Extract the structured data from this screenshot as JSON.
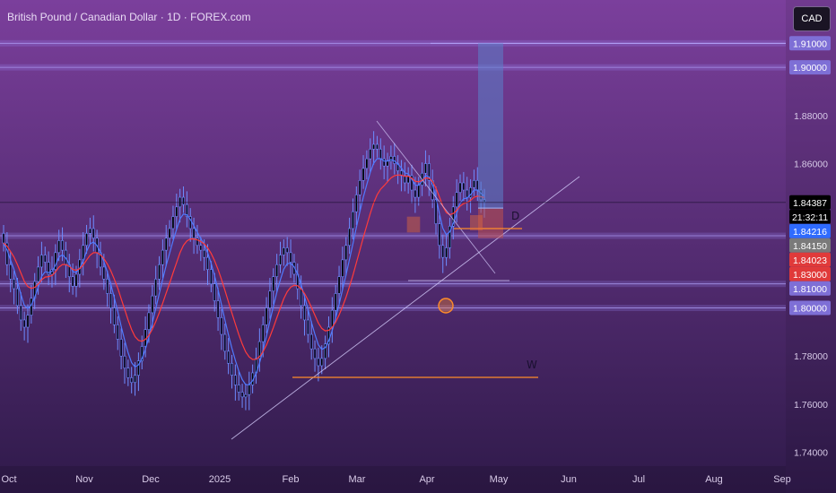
{
  "header": {
    "title": "British Pound / Canadian Dollar · 1D · FOREX.com",
    "currency_button": "CAD"
  },
  "colors": {
    "background_top": "#7b3f9c",
    "background_bottom": "#2f1a4a",
    "candle_body": "#000000",
    "candle_border": "#6d8cff",
    "ema_fast": "#4f7bff",
    "ema_slow": "#ff3b3b",
    "projection_box": "#5b7fc8",
    "stop_box": "#c0504d",
    "annotation_orange": "#ff8c2a"
  },
  "chart_data": {
    "type": "candlestick",
    "symbol": "GBPCAD",
    "timeframe": "1D",
    "ylim": [
      1.735,
      1.928
    ],
    "y_ticks": [
      "1.74000",
      "1.76000",
      "1.78000",
      "1.86000",
      "1.88000"
    ],
    "x_ticks": [
      "Oct",
      "Nov",
      "Dec",
      "2025",
      "Feb",
      "Mar",
      "Apr",
      "May",
      "Jun",
      "Jul",
      "Aug",
      "Sep"
    ],
    "candles_close_estimate": [
      1.827,
      1.818,
      1.812,
      1.808,
      1.801,
      1.795,
      1.792,
      1.797,
      1.804,
      1.811,
      1.817,
      1.822,
      1.819,
      1.814,
      1.816,
      1.823,
      1.828,
      1.824,
      1.818,
      1.813,
      1.809,
      1.814,
      1.82,
      1.826,
      1.831,
      1.833,
      1.829,
      1.823,
      1.817,
      1.812,
      1.806,
      1.8,
      1.793,
      1.787,
      1.78,
      1.775,
      1.771,
      1.769,
      1.772,
      1.778,
      1.784,
      1.791,
      1.798,
      1.805,
      1.812,
      1.818,
      1.824,
      1.829,
      1.833,
      1.838,
      1.842,
      1.846,
      1.843,
      1.838,
      1.833,
      1.829,
      1.826,
      1.824,
      1.821,
      1.816,
      1.81,
      1.803,
      1.796,
      1.789,
      1.782,
      1.777,
      1.772,
      1.768,
      1.765,
      1.763,
      1.764,
      1.768,
      1.773,
      1.779,
      1.786,
      1.793,
      1.8,
      1.807,
      1.813,
      1.818,
      1.822,
      1.825,
      1.823,
      1.819,
      1.814,
      1.808,
      1.801,
      1.795,
      1.789,
      1.783,
      1.779,
      1.776,
      1.779,
      1.785,
      1.792,
      1.799,
      1.806,
      1.813,
      1.82,
      1.826,
      1.833,
      1.84,
      1.847,
      1.853,
      1.858,
      1.862,
      1.866,
      1.868,
      1.866,
      1.862,
      1.859,
      1.861,
      1.863,
      1.86,
      1.857,
      1.855,
      1.852,
      1.855,
      1.849,
      1.846,
      1.851,
      1.856,
      1.86,
      1.853,
      1.845,
      1.835,
      1.826,
      1.821,
      1.825,
      1.834,
      1.842,
      1.848,
      1.852,
      1.849,
      1.846,
      1.85,
      1.853,
      1.849,
      1.845,
      1.844
    ],
    "levels": [
      1.91,
      1.9,
      1.83,
      1.81,
      1.8
    ],
    "price_labels": [
      {
        "text": "1.91000",
        "value": 1.91,
        "bg": "#7e6fd6",
        "fg": "#ffffff"
      },
      {
        "text": "1.90000",
        "value": 1.9,
        "bg": "#7e6fd6",
        "fg": "#ffffff"
      },
      {
        "text": "1.84387",
        "value": 1.84387,
        "bg": "#000000",
        "fg": "#ffffff"
      },
      {
        "text": "21:32:11",
        "value": 1.84387,
        "bg": "#000000",
        "fg": "#ffffff",
        "sub": true
      },
      {
        "text": "1.84216",
        "value": 1.84216,
        "bg": "#2f6bff",
        "fg": "#ffffff"
      },
      {
        "text": "1.84150",
        "value": 1.8415,
        "bg": "#7a7a7a",
        "fg": "#ffffff"
      },
      {
        "text": "1.84023",
        "value": 1.84023,
        "bg": "#e03a3a",
        "fg": "#ffffff"
      },
      {
        "text": "1.83000",
        "value": 1.83,
        "bg": "#e03a3a",
        "fg": "#ffffff"
      },
      {
        "text": "1.81000",
        "value": 1.81,
        "bg": "#7e6fd6",
        "fg": "#ffffff"
      },
      {
        "text": "1.80000",
        "value": 1.8,
        "bg": "#7e6fd6",
        "fg": "#ffffff"
      }
    ],
    "annotations": [
      "D",
      "W"
    ]
  }
}
